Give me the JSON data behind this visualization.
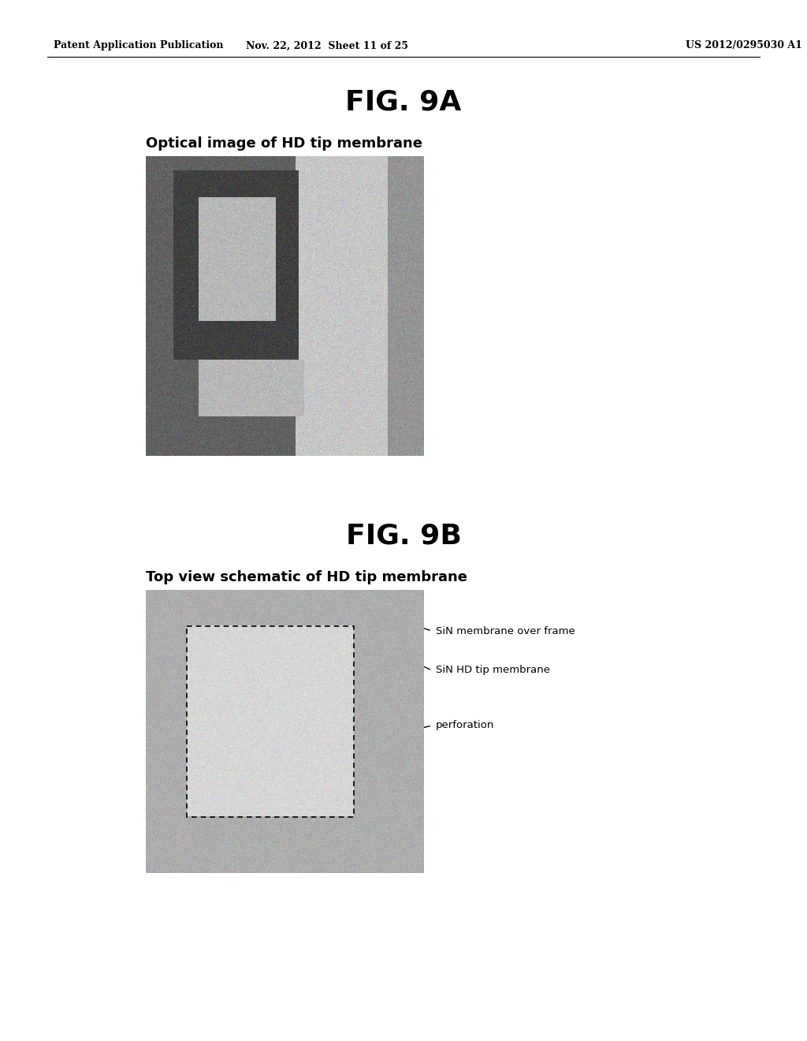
{
  "page_header_left": "Patent Application Publication",
  "page_header_center": "Nov. 22, 2012  Sheet 11 of 25",
  "page_header_right": "US 2012/0295030 A1",
  "fig9a_title": "FIG. 9A",
  "fig9a_subtitle": "Optical image of HD tip membrane",
  "fig9b_title": "FIG. 9B",
  "fig9b_subtitle": "Top view schematic of HD tip membrane",
  "label_sin_membrane": "SiN membrane over frame",
  "label_sin_hd": "SiN HD tip membrane",
  "label_perforation": "perforation",
  "bg_color": "#ffffff",
  "header_fontsize": 9,
  "fig_title_fontsize": 26,
  "subtitle_fontsize": 13
}
